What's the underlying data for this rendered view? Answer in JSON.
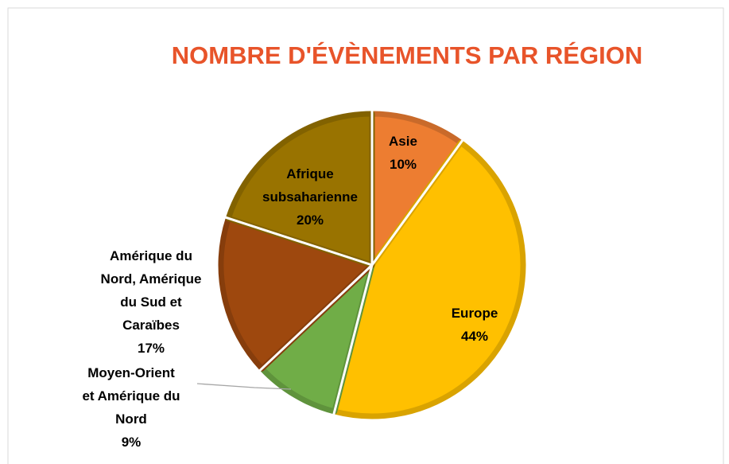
{
  "chart_data": {
    "type": "pie",
    "title": "NOMBRE D'ÉVÈNEMENTS PAR RÉGION",
    "categories": [
      "Asie",
      "Europe",
      "Moyen-Orient et Amérique du Nord",
      "Amérique du Nord, Amérique du Sud et Caraïbes",
      "Afrique subsaharienne"
    ],
    "values": [
      10,
      44,
      9,
      17,
      20
    ],
    "value_labels": [
      "10%",
      "44%",
      "9%",
      "17%",
      "20%"
    ],
    "colors": [
      "#ED7D31",
      "#FFC000",
      "#70AD47",
      "#9E480E",
      "#997300"
    ]
  }
}
